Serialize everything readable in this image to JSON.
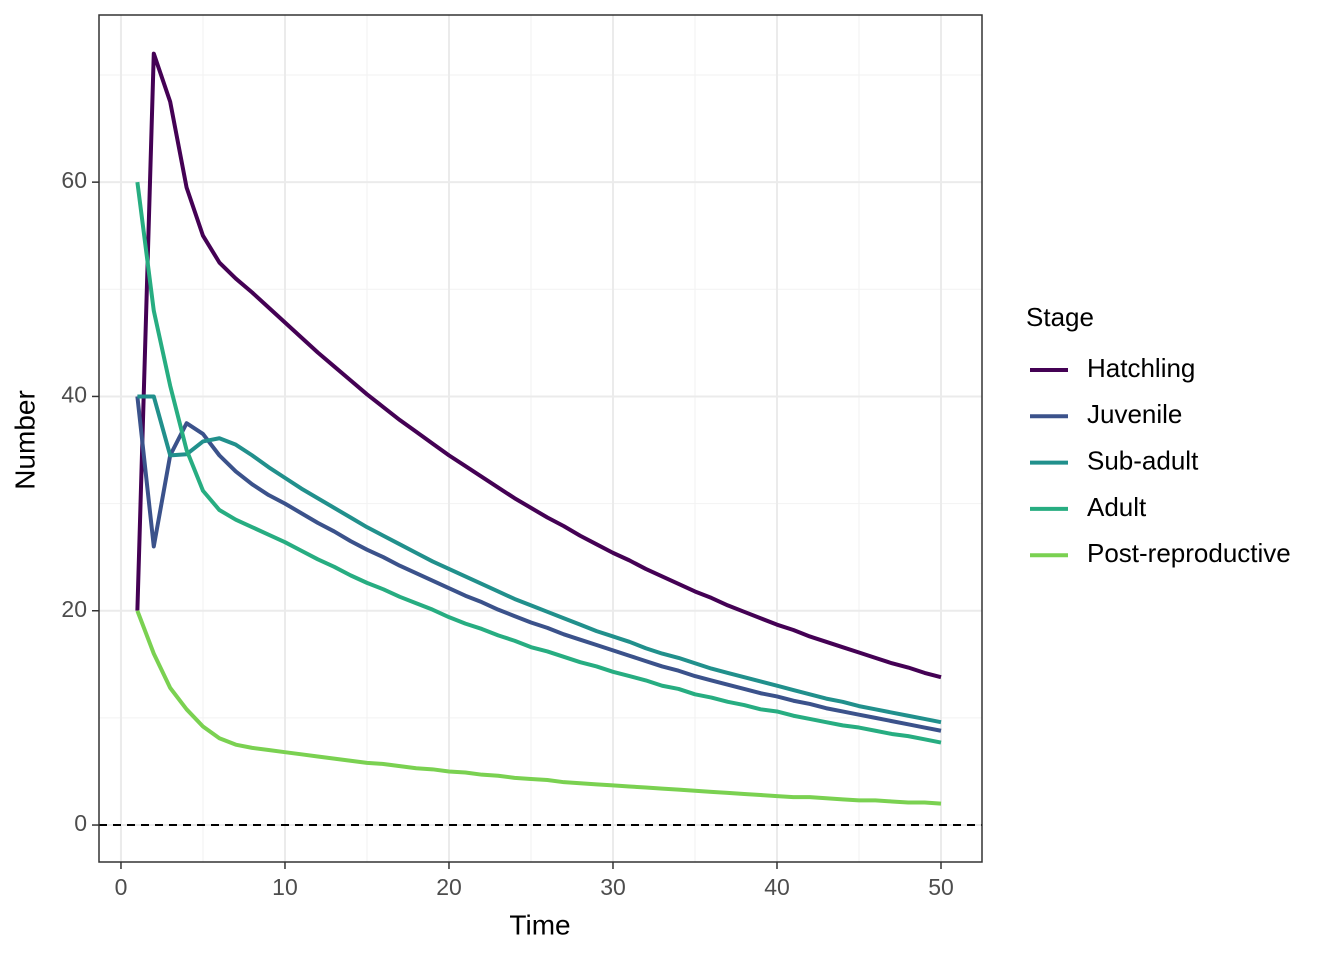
{
  "chart_data": {
    "type": "line",
    "xlabel": "Time",
    "ylabel": "Number",
    "legend_title": "Stage",
    "legend": "right",
    "grid": true,
    "hline": 0,
    "xlim": [
      -1.34,
      52.5
    ],
    "ylim": [
      -3.45,
      75.6
    ],
    "xticks": [
      0,
      10,
      20,
      30,
      40,
      50
    ],
    "yticks": [
      0,
      20,
      40,
      60
    ],
    "xminorticks": [
      5,
      15,
      25,
      35,
      45
    ],
    "yminorticks": [
      10,
      30,
      50,
      70
    ],
    "x": [
      1,
      2,
      3,
      4,
      5,
      6,
      7,
      8,
      9,
      10,
      11,
      12,
      13,
      14,
      15,
      16,
      17,
      18,
      19,
      20,
      21,
      22,
      23,
      24,
      25,
      26,
      27,
      28,
      29,
      30,
      31,
      32,
      33,
      34,
      35,
      36,
      37,
      38,
      39,
      40,
      41,
      42,
      43,
      44,
      45,
      46,
      47,
      48,
      49,
      50
    ],
    "series": [
      {
        "name": "Hatchling",
        "color": "#440154",
        "values": [
          20,
          72,
          67.5,
          59.5,
          55,
          52.5,
          51,
          49.7,
          48.3,
          46.9,
          45.5,
          44.1,
          42.8,
          41.5,
          40.2,
          39.0,
          37.8,
          36.7,
          35.6,
          34.5,
          33.5,
          32.5,
          31.5,
          30.5,
          29.6,
          28.7,
          27.9,
          27.0,
          26.2,
          25.4,
          24.7,
          23.9,
          23.2,
          22.5,
          21.8,
          21.2,
          20.5,
          19.9,
          19.3,
          18.7,
          18.2,
          17.6,
          17.1,
          16.6,
          16.1,
          15.6,
          15.1,
          14.7,
          14.2,
          13.8
        ]
      },
      {
        "name": "Juvenile",
        "color": "#3b528b",
        "values": [
          40,
          26,
          34.5,
          37.5,
          36.5,
          34.5,
          33,
          31.8,
          30.8,
          30,
          29.1,
          28.2,
          27.4,
          26.5,
          25.7,
          25.0,
          24.2,
          23.5,
          22.8,
          22.1,
          21.4,
          20.8,
          20.1,
          19.5,
          18.9,
          18.4,
          17.8,
          17.3,
          16.8,
          16.3,
          15.8,
          15.3,
          14.8,
          14.4,
          13.9,
          13.5,
          13.1,
          12.7,
          12.3,
          12.0,
          11.6,
          11.3,
          10.9,
          10.6,
          10.3,
          10.0,
          9.7,
          9.4,
          9.1,
          8.8
        ]
      },
      {
        "name": "Sub-adult",
        "color": "#21908c",
        "values": [
          40,
          40,
          34.5,
          34.6,
          35.8,
          36.1,
          35.5,
          34.5,
          33.4,
          32.4,
          31.4,
          30.5,
          29.6,
          28.7,
          27.8,
          27.0,
          26.2,
          25.4,
          24.6,
          23.9,
          23.2,
          22.5,
          21.8,
          21.1,
          20.5,
          19.9,
          19.3,
          18.7,
          18.1,
          17.6,
          17.1,
          16.5,
          16.0,
          15.6,
          15.1,
          14.6,
          14.2,
          13.8,
          13.4,
          13.0,
          12.6,
          12.2,
          11.8,
          11.5,
          11.1,
          10.8,
          10.5,
          10.2,
          9.9,
          9.6
        ]
      },
      {
        "name": "Adult",
        "color": "#27ad81",
        "values": [
          60,
          48,
          41,
          35,
          31.2,
          29.4,
          28.5,
          27.8,
          27.1,
          26.4,
          25.6,
          24.8,
          24.1,
          23.3,
          22.6,
          22.0,
          21.3,
          20.7,
          20.1,
          19.4,
          18.8,
          18.3,
          17.7,
          17.2,
          16.6,
          16.2,
          15.7,
          15.2,
          14.8,
          14.3,
          13.9,
          13.5,
          13.0,
          12.7,
          12.2,
          11.9,
          11.5,
          11.2,
          10.8,
          10.6,
          10.2,
          9.9,
          9.6,
          9.3,
          9.1,
          8.8,
          8.5,
          8.3,
          8.0,
          7.7
        ]
      },
      {
        "name": "Post-reproductive",
        "color": "#7ad151",
        "values": [
          20,
          16,
          12.8,
          10.8,
          9.2,
          8.1,
          7.5,
          7.2,
          7.0,
          6.8,
          6.6,
          6.4,
          6.2,
          6.0,
          5.8,
          5.7,
          5.5,
          5.3,
          5.2,
          5.0,
          4.9,
          4.7,
          4.6,
          4.4,
          4.3,
          4.2,
          4.0,
          3.9,
          3.8,
          3.7,
          3.6,
          3.5,
          3.4,
          3.3,
          3.2,
          3.1,
          3.0,
          2.9,
          2.8,
          2.7,
          2.6,
          2.6,
          2.5,
          2.4,
          2.3,
          2.3,
          2.2,
          2.1,
          2.1,
          2.0
        ]
      }
    ]
  }
}
